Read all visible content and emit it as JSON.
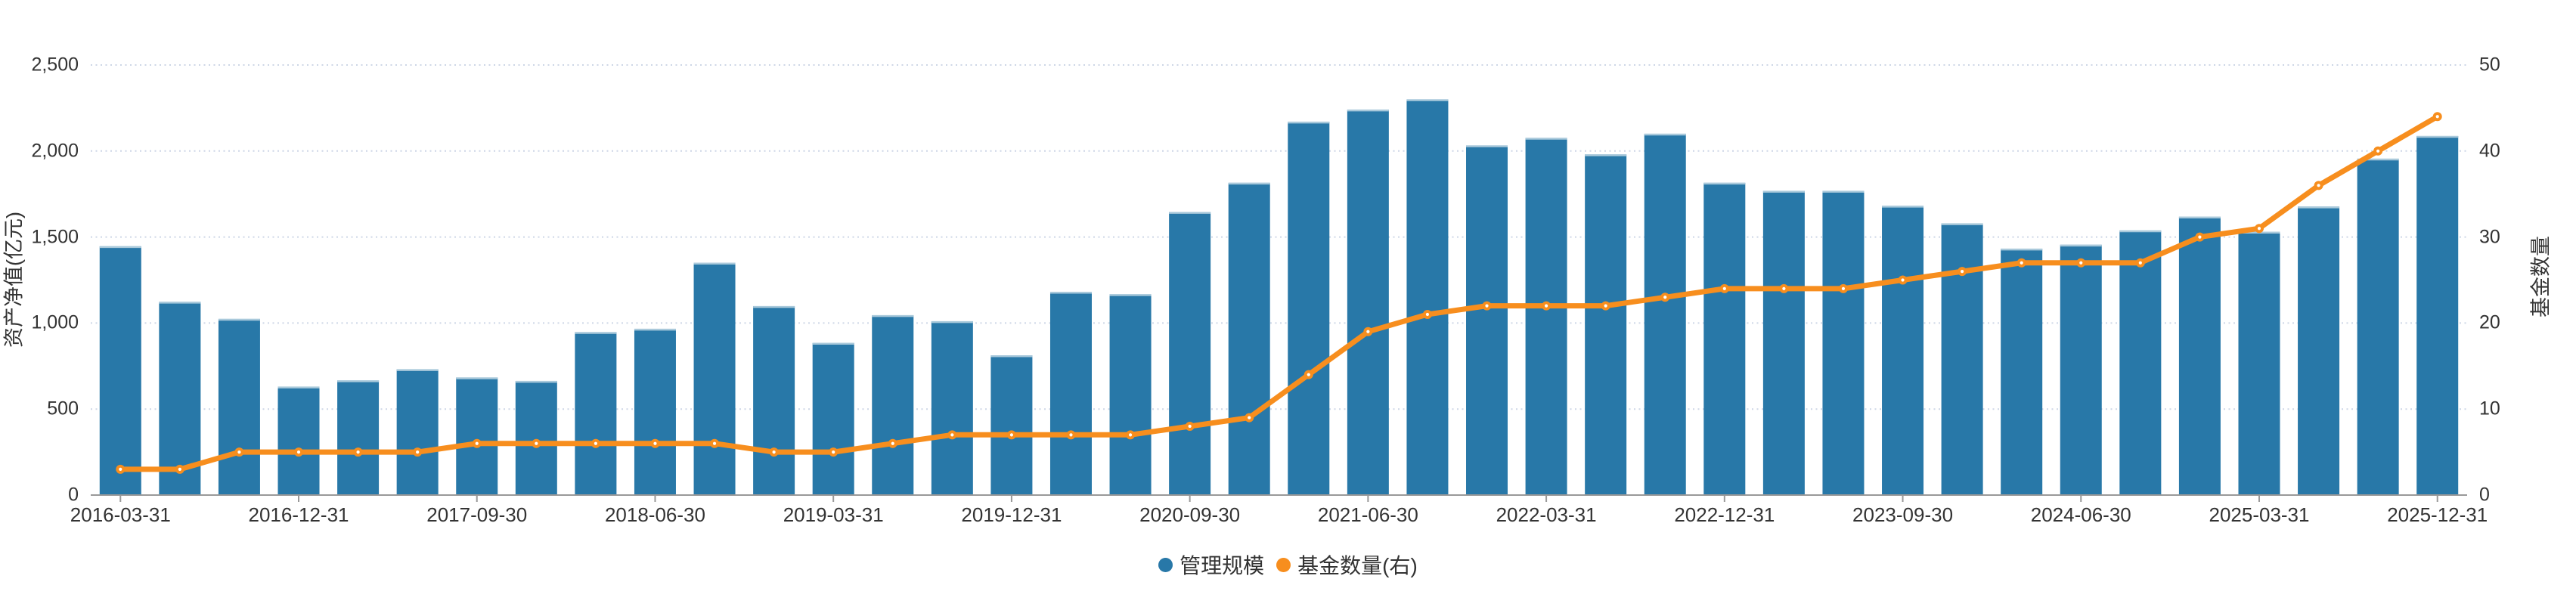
{
  "chart_data": {
    "type": "bar+line",
    "categories": [
      "2016-03-31",
      "2016-06-30",
      "2016-09-30",
      "2016-12-31",
      "2017-03-31",
      "2017-06-30",
      "2017-09-30",
      "2017-12-31",
      "2018-03-31",
      "2018-06-30",
      "2018-09-30",
      "2018-12-31",
      "2019-03-31",
      "2019-06-30",
      "2019-09-30",
      "2019-12-31",
      "2020-03-31",
      "2020-06-30",
      "2020-09-30",
      "2020-12-31",
      "2021-03-31",
      "2021-06-30",
      "2021-09-30",
      "2021-12-31",
      "2022-03-31",
      "2022-06-30",
      "2022-09-30",
      "2022-12-31",
      "2023-03-31",
      "2023-06-30",
      "2023-09-30",
      "2023-12-31",
      "2024-03-31",
      "2024-06-30",
      "2024-09-30",
      "2024-12-31",
      "2025-03-31",
      "2025-06-30",
      "2025-09-30",
      "2025-12-31"
    ],
    "x_tick_labels": [
      "2016-03-31",
      "2016-12-31",
      "2017-09-30",
      "2018-06-30",
      "2019-03-31",
      "2019-12-31",
      "2020-09-30",
      "2021-06-30",
      "2022-03-31",
      "2022-12-31",
      "2023-09-30",
      "2024-06-30",
      "2025-03-31",
      "2025-12-31"
    ],
    "x_label_interval": 3,
    "series": [
      {
        "name": "管理规模",
        "type": "bar",
        "axis": "left",
        "color": "#2878a8",
        "border_color": "#a9c9db",
        "values": [
          1446,
          1123,
          1024,
          630,
          666,
          731,
          683,
          663,
          947,
          966,
          1350,
          1098,
          884,
          1045,
          1010,
          812,
          1181,
          1167,
          1645,
          1815,
          2170,
          2240,
          2300,
          2032,
          2076,
          1980,
          2100,
          1815,
          1768,
          1768,
          1681,
          1579,
          1432,
          1455,
          1538,
          1618,
          1530,
          1677,
          1955,
          2087
        ]
      },
      {
        "name": "基金数量(右)",
        "type": "line",
        "axis": "right",
        "color": "#f78e1e",
        "marker": "circle-white-center",
        "values": [
          3,
          3,
          5,
          5,
          5,
          5,
          6,
          6,
          6,
          6,
          6,
          5,
          5,
          6,
          7,
          7,
          7,
          7,
          8,
          9,
          14,
          19,
          21,
          22,
          22,
          22,
          23,
          24,
          24,
          24,
          25,
          26,
          27,
          27,
          27,
          30,
          31,
          36,
          40,
          44
        ]
      }
    ],
    "left_axis": {
      "title": "资产净值(亿元)",
      "min": 0,
      "max": 2500,
      "tick_interval": 500,
      "tick_labels": [
        "0",
        "500",
        "1,000",
        "1,500",
        "2,000",
        "2,500"
      ]
    },
    "right_axis": {
      "title": "基金数量",
      "min": 0,
      "max": 50,
      "tick_interval": 10,
      "tick_labels": [
        "0",
        "10",
        "20",
        "30",
        "40",
        "50"
      ]
    },
    "grid": true,
    "gridline_color": "#cdd6e6",
    "axis_line_color": "#999999",
    "text_color": "#333333",
    "legend_position": "bottom"
  }
}
